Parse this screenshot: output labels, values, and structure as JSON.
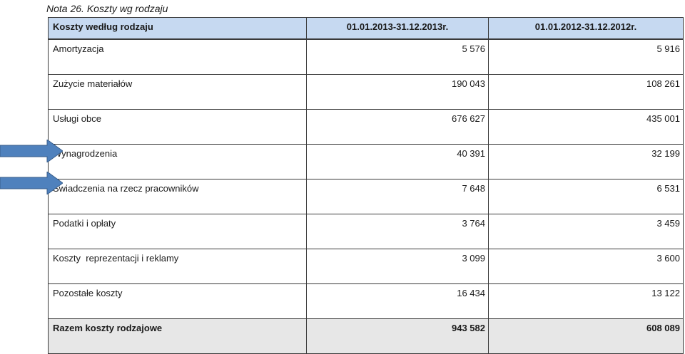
{
  "note_title": "Nota 26. Koszty wg rodzaju",
  "table": {
    "headers": [
      "Koszty według rodzaju",
      "01.01.2013-31.12.2013r.",
      "01.01.2012-31.12.2012r."
    ],
    "rows": [
      {
        "label": "Amortyzacja",
        "y2013": "5 576",
        "y2012": "5 916"
      },
      {
        "label": "Zużycie materiałów",
        "y2013": "190 043",
        "y2012": "108 261"
      },
      {
        "label": "Usługi obce",
        "y2013": "676 627",
        "y2012": "435 001"
      },
      {
        "label": "Wynagrodzenia",
        "y2013": "40 391",
        "y2012": "32 199"
      },
      {
        "label": "Świadczenia na rzecz pracowników",
        "y2013": "7 648",
        "y2012": "6 531"
      },
      {
        "label": "Podatki i opłaty",
        "y2013": "3 764",
        "y2012": "3 459"
      },
      {
        "label": "Koszty  reprezentacji i reklamy",
        "y2013": "3 099",
        "y2012": "3 600"
      },
      {
        "label": "Pozostałe koszty",
        "y2013": "16 434",
        "y2012": "13 122"
      }
    ],
    "total": {
      "label": "Razem koszty rodzajowe",
      "y2013": "943 582",
      "y2012": "608 089"
    }
  },
  "colors": {
    "header_bg": "#c6d9f1",
    "total_bg": "#e7e7e7",
    "arrow_fill": "#4f81bd",
    "arrow_stroke": "#385d8a"
  },
  "annotations": [
    {
      "type": "arrow",
      "points_to": "Wynagrodzenia"
    },
    {
      "type": "arrow",
      "points_to": "Świadczenia na rzecz pracowników"
    }
  ]
}
